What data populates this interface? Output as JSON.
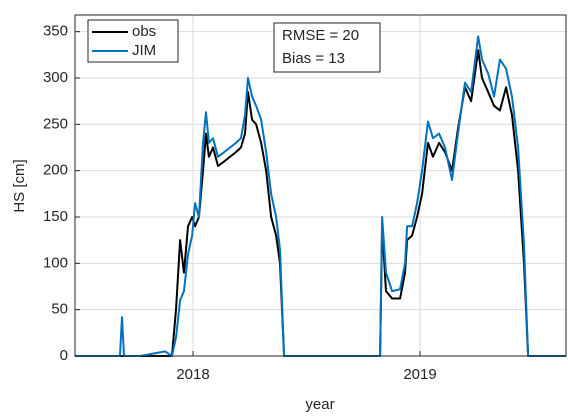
{
  "chart_data": {
    "type": "line",
    "xlabel": "year",
    "ylabel": "HS [cm]",
    "x": [
      2017.48,
      2017.67,
      2017.678,
      2017.687,
      2017.696,
      2017.767,
      2017.877,
      2017.907,
      2017.925,
      2017.943,
      2017.96,
      2017.978,
      2017.996,
      2018.009,
      2018.026,
      2018.044,
      2018.057,
      2018.07,
      2018.088,
      2018.11,
      2018.137,
      2018.163,
      2018.189,
      2018.211,
      2018.229,
      2018.242,
      2018.26,
      2018.278,
      2018.3,
      2018.322,
      2018.344,
      2018.366,
      2018.383,
      2018.401,
      2018.824,
      2018.833,
      2018.85,
      2018.877,
      2018.912,
      2018.934,
      2018.943,
      2018.965,
      2018.987,
      2019.009,
      2019.035,
      2019.057,
      2019.084,
      2019.11,
      2019.141,
      2019.167,
      2019.198,
      2019.225,
      2019.256,
      2019.273,
      2019.3,
      2019.326,
      2019.352,
      2019.379,
      2019.405,
      2019.432,
      2019.458,
      2019.476,
      2019.643
    ],
    "series": [
      {
        "name": "obs",
        "color": "#000000",
        "values": [
          0,
          0,
          0,
          0,
          0,
          0,
          0,
          0,
          50,
          125,
          90,
          140,
          150,
          140,
          150,
          200,
          240,
          215,
          225,
          205,
          210,
          215,
          220,
          225,
          240,
          285,
          255,
          250,
          230,
          200,
          150,
          130,
          100,
          0,
          0,
          140,
          70,
          62,
          62,
          90,
          125,
          130,
          150,
          175,
          230,
          215,
          230,
          220,
          200,
          245,
          290,
          275,
          330,
          300,
          285,
          270,
          265,
          290,
          260,
          200,
          100,
          0,
          0
        ]
      },
      {
        "name": "JIM",
        "color": "#0072BD",
        "values": [
          0,
          0,
          0,
          42,
          0,
          0,
          5,
          0,
          20,
          60,
          70,
          110,
          130,
          165,
          150,
          230,
          263,
          230,
          235,
          215,
          220,
          225,
          230,
          235,
          260,
          300,
          280,
          270,
          255,
          220,
          175,
          150,
          115,
          0,
          0,
          150,
          90,
          70,
          72,
          100,
          140,
          140,
          165,
          200,
          253,
          235,
          240,
          225,
          190,
          240,
          295,
          285,
          345,
          320,
          305,
          280,
          320,
          310,
          280,
          225,
          120,
          0,
          0
        ]
      }
    ],
    "annotations": [
      "RMSE = 20",
      "Bias = 13"
    ],
    "xlim": [
      2017.48,
      2019.643
    ],
    "xticks": [
      2018,
      2019
    ],
    "ylim": [
      0,
      368
    ],
    "yticks": [
      0,
      50,
      100,
      150,
      200,
      250,
      300,
      350
    ],
    "grid": true,
    "legend": "upper left"
  }
}
